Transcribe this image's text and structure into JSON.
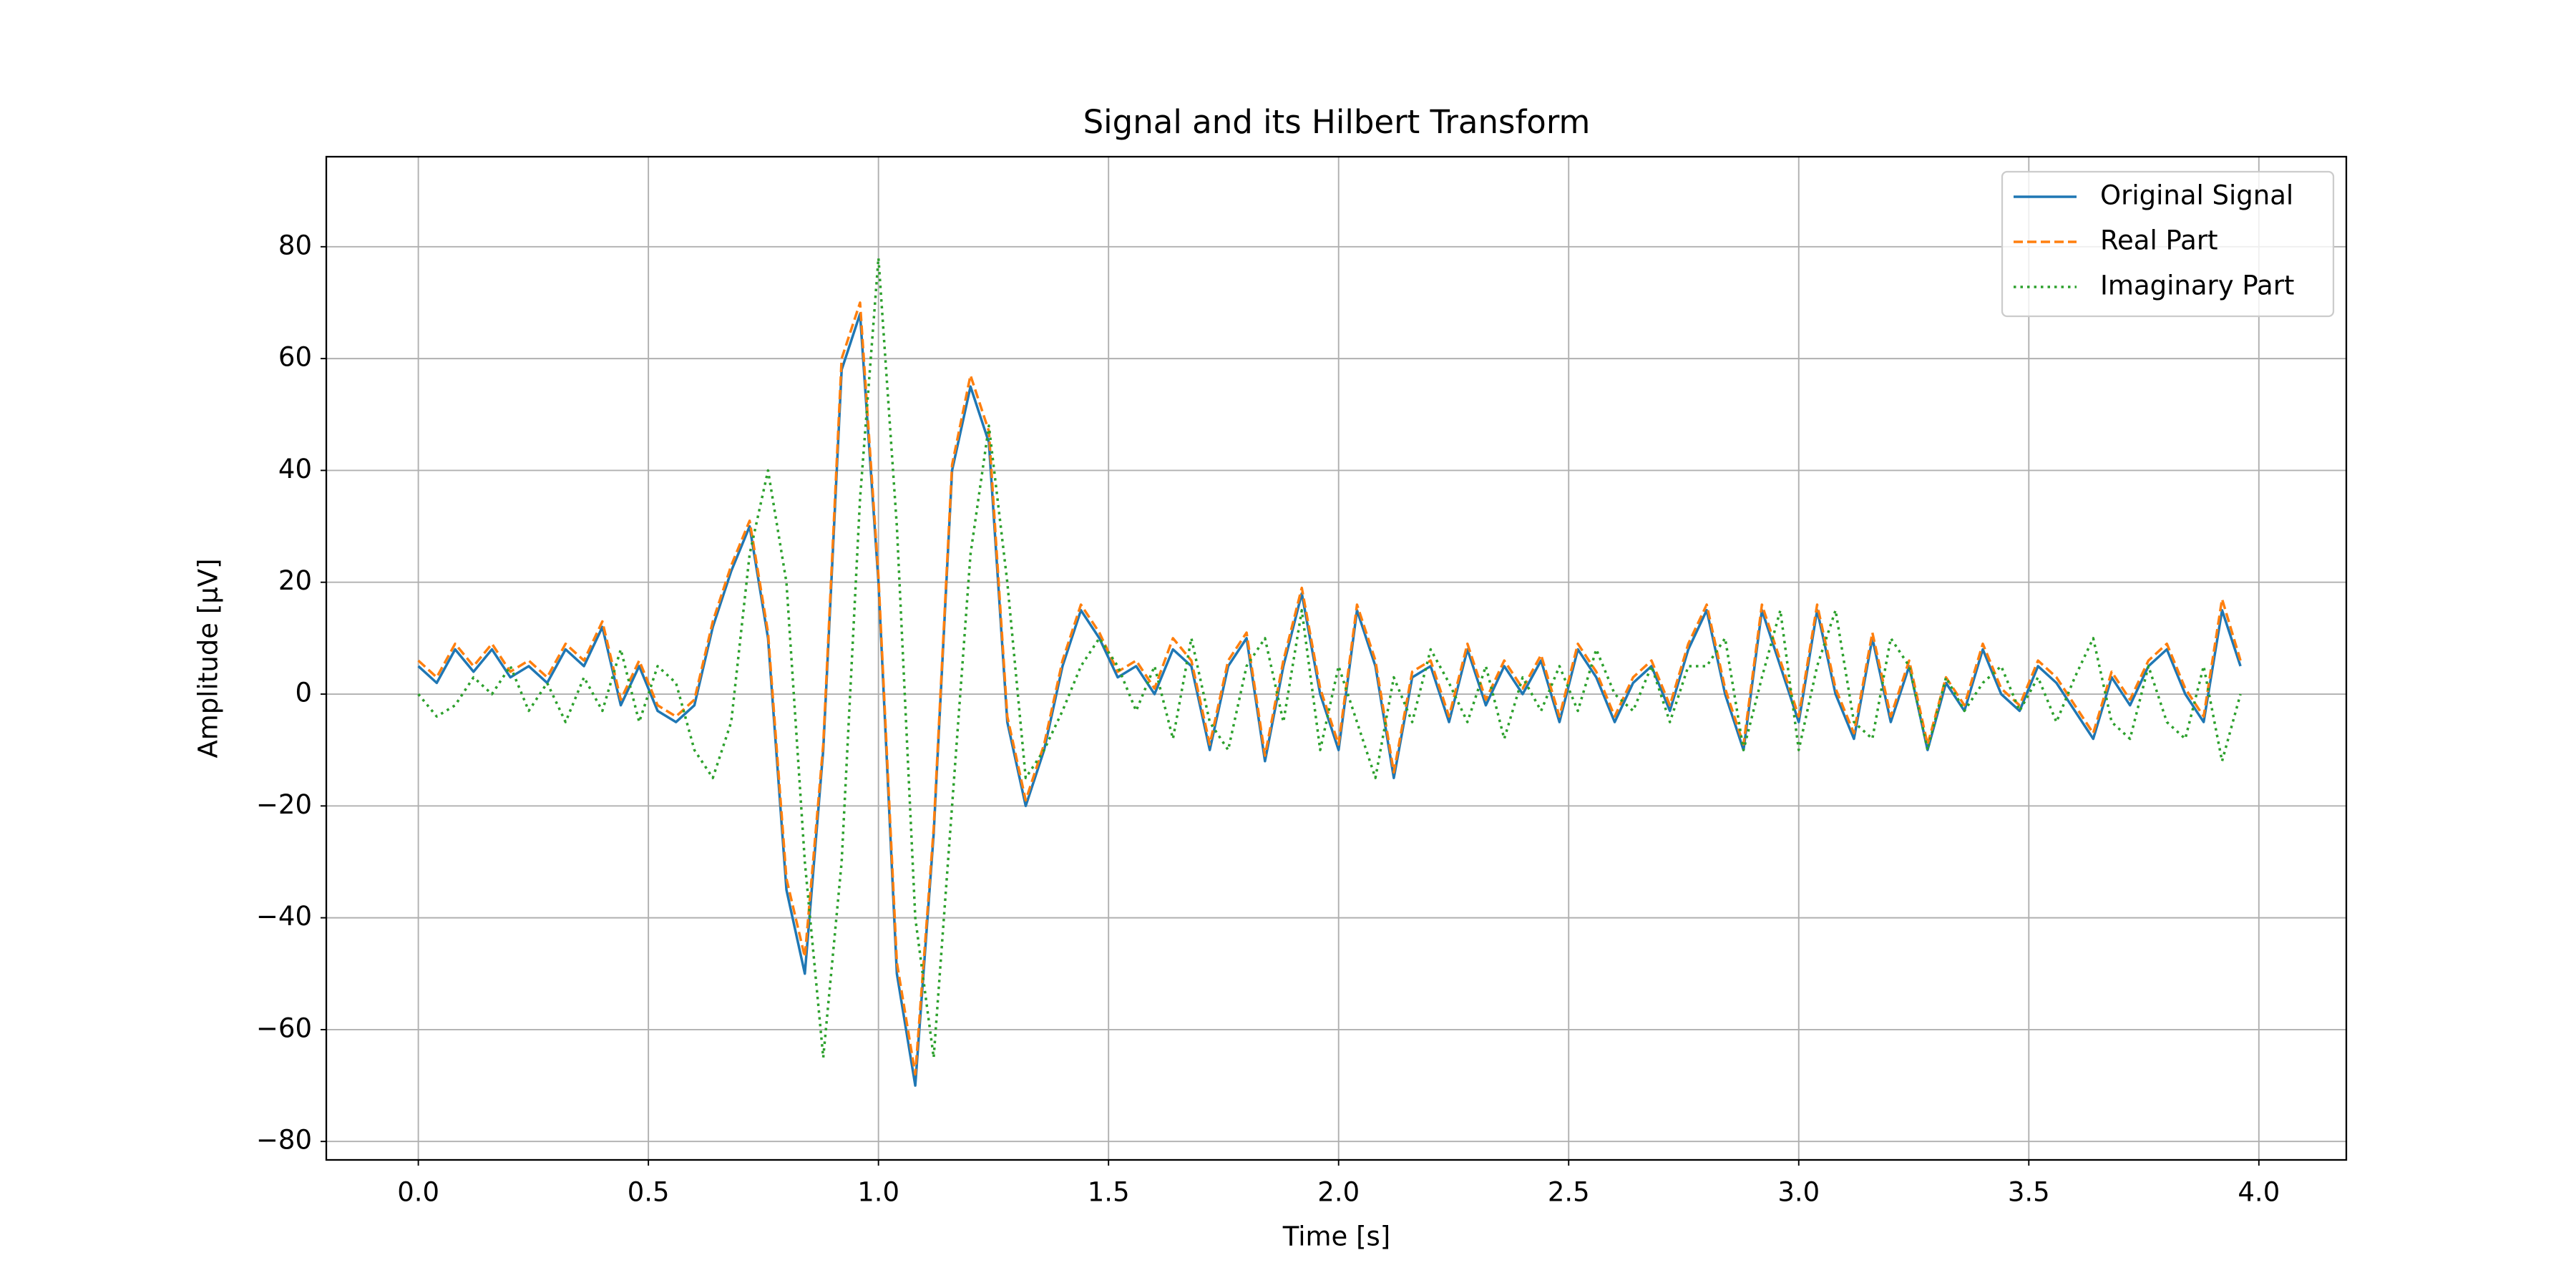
{
  "chart_data": {
    "type": "line",
    "title": "Signal and its Hilbert Transform",
    "x_label": "Time [s]",
    "y_label": "Amplitude [μV]",
    "x": [
      0,
      0.04,
      0.08,
      0.12,
      0.16,
      0.2,
      0.24,
      0.28,
      0.32,
      0.36,
      0.4,
      0.44,
      0.48,
      0.52,
      0.56,
      0.6,
      0.64,
      0.68,
      0.72,
      0.76,
      0.8,
      0.84,
      0.88,
      0.92,
      0.96,
      1.0,
      1.04,
      1.08,
      1.12,
      1.16,
      1.2,
      1.24,
      1.28,
      1.32,
      1.36,
      1.4,
      1.44,
      1.48,
      1.52,
      1.56,
      1.6,
      1.64,
      1.68,
      1.72,
      1.76,
      1.8,
      1.84,
      1.88,
      1.92,
      1.96,
      2.0,
      2.04,
      2.08,
      2.12,
      2.16,
      2.2,
      2.24,
      2.28,
      2.32,
      2.36,
      2.4,
      2.44,
      2.48,
      2.52,
      2.56,
      2.6,
      2.64,
      2.68,
      2.72,
      2.76,
      2.8,
      2.84,
      2.88,
      2.92,
      2.96,
      3.0,
      3.04,
      3.08,
      3.12,
      3.16,
      3.2,
      3.24,
      3.28,
      3.32,
      3.36,
      3.4,
      3.44,
      3.48,
      3.52,
      3.56,
      3.6,
      3.64,
      3.68,
      3.72,
      3.76,
      3.8,
      3.84,
      3.88,
      3.92,
      3.96
    ],
    "series": [
      {
        "name": "Original Signal",
        "color": "#1f77b4",
        "dash": "solid",
        "values": [
          5,
          2,
          8,
          4,
          8,
          3,
          5,
          2,
          8,
          5,
          12,
          -2,
          5,
          -3,
          -5,
          -2,
          12,
          22,
          30,
          10,
          -35,
          -50,
          -10,
          58,
          68,
          20,
          -50,
          -70,
          -25,
          40,
          55,
          45,
          -5,
          -20,
          -10,
          5,
          15,
          10,
          3,
          5,
          0,
          8,
          5,
          -10,
          5,
          10,
          -12,
          5,
          18,
          0,
          -10,
          15,
          5,
          -15,
          3,
          5,
          -5,
          8,
          -2,
          5,
          0,
          6,
          -5,
          8,
          3,
          -5,
          2,
          5,
          -3,
          8,
          15,
          0,
          -10,
          15,
          5,
          -5,
          15,
          0,
          -8,
          10,
          -5,
          5,
          -10,
          2,
          -3,
          8,
          0,
          -3,
          5,
          2,
          -3,
          -8,
          3,
          -2,
          5,
          8,
          0,
          -5,
          15,
          5
        ]
      },
      {
        "name": "Real Part",
        "color": "#ff7f0e",
        "dash": "dashed",
        "values": [
          6,
          3,
          9,
          5,
          9,
          4,
          6,
          3,
          9,
          6,
          13,
          -1,
          6,
          -2,
          -4,
          -1,
          13,
          23,
          31,
          11,
          -33,
          -47,
          -9,
          60,
          70,
          21,
          -48,
          -68,
          -24,
          41,
          57,
          47,
          -4,
          -19,
          -9,
          6,
          16,
          11,
          4,
          6,
          1,
          10,
          6,
          -9,
          6,
          11,
          -11,
          6,
          19,
          1,
          -9,
          16,
          6,
          -14,
          4,
          6,
          -4,
          9,
          -1,
          6,
          1,
          7,
          -4,
          9,
          4,
          -4,
          3,
          6,
          -2,
          9,
          16,
          1,
          -9,
          16,
          6,
          -4,
          16,
          1,
          -7,
          11,
          -4,
          6,
          -9,
          3,
          -2,
          9,
          1,
          -2,
          6,
          3,
          -2,
          -7,
          4,
          -1,
          6,
          9,
          1,
          -4,
          17,
          6
        ]
      },
      {
        "name": "Imaginary Part",
        "color": "#2ca02c",
        "dash": "dotted",
        "values": [
          0,
          -4,
          -2,
          3,
          0,
          5,
          -3,
          2,
          -5,
          3,
          -3,
          8,
          -5,
          5,
          2,
          -10,
          -15,
          -5,
          25,
          40,
          20,
          -30,
          -65,
          -30,
          35,
          78,
          30,
          -40,
          -65,
          -20,
          25,
          48,
          20,
          -15,
          -10,
          -3,
          5,
          10,
          5,
          -3,
          5,
          -8,
          10,
          -5,
          -10,
          5,
          10,
          -5,
          15,
          -10,
          5,
          -5,
          -15,
          3,
          -5,
          8,
          2,
          -5,
          5,
          -8,
          3,
          -3,
          5,
          -3,
          8,
          0,
          -3,
          5,
          -5,
          5,
          5,
          10,
          -10,
          3,
          15,
          -10,
          5,
          15,
          -5,
          -8,
          10,
          5,
          -10,
          3,
          -3,
          2,
          5,
          -3,
          3,
          -5,
          3,
          10,
          -5,
          -8,
          5,
          -5,
          -8,
          5,
          -12,
          0
        ]
      }
    ],
    "xlim": [
      -0.2,
      4.19
    ],
    "ylim": [
      -83.3,
      96.1
    ],
    "xticks": [
      {
        "value": 0,
        "label": "0.0"
      },
      0.5,
      {
        "value": 1,
        "label": "1.0"
      },
      1.5,
      {
        "value": 2,
        "label": "2.0"
      },
      2.5,
      {
        "value": 3,
        "label": "3.0"
      },
      3.5,
      {
        "value": 4,
        "label": "4.0"
      }
    ],
    "yticks": [
      {
        "value": -80,
        "label": "−80"
      },
      {
        "value": -60,
        "label": "−60"
      },
      {
        "value": -40,
        "label": "−40"
      },
      {
        "value": -20,
        "label": "−20"
      },
      0,
      20,
      40,
      60,
      80
    ],
    "grid": true,
    "legend": "upper right"
  }
}
